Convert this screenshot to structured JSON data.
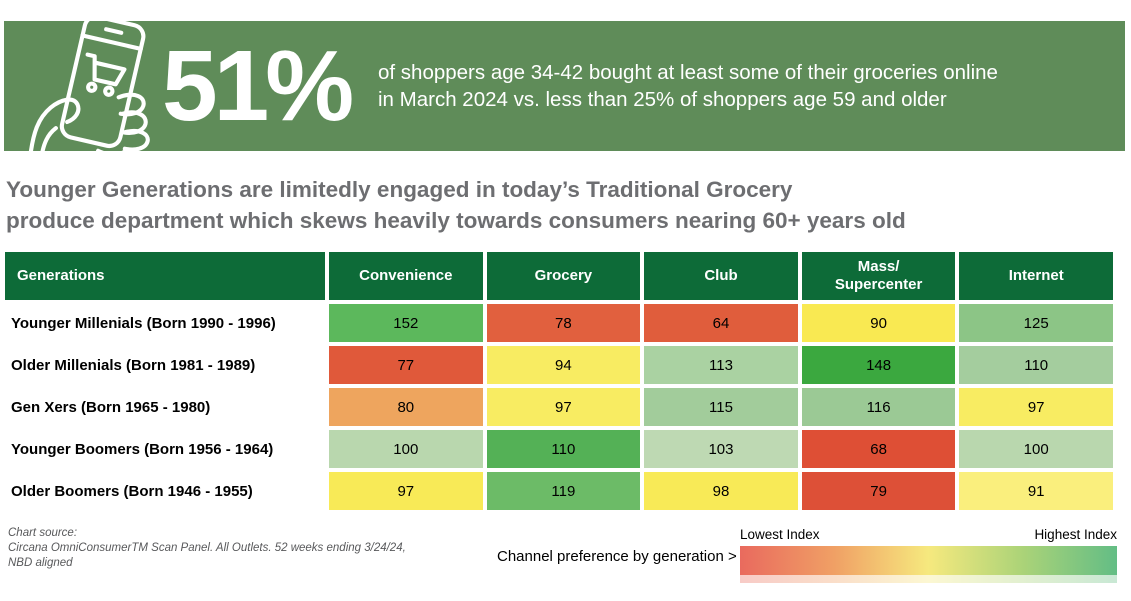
{
  "banner": {
    "stat": "51%",
    "description_line1": "of shoppers age 34-42 bought at least some of their groceries online",
    "description_line2": "in March 2024 vs. less than 25% of shoppers age 59 and older",
    "bg_color": "#5f8c59",
    "icon": "hand-holding-phone-shopping-cart-icon"
  },
  "headline": {
    "line1": "Younger Generations are limitedly engaged in today’s Traditional Grocery",
    "line2": "produce department which skews heavily towards consumers nearing 60+ years old"
  },
  "chart_data": {
    "type": "heatmap",
    "title": "Channel preference by generation",
    "categories": [
      "Convenience",
      "Grocery",
      "Club",
      "Mass/Supercenter",
      "Internet"
    ],
    "series": [
      {
        "name": "Younger Millenials (Born 1990 - 1996)",
        "values": [
          152,
          78,
          64,
          90,
          125
        ]
      },
      {
        "name": "Older Millenials (Born 1981 - 1989)",
        "values": [
          77,
          94,
          113,
          148,
          110
        ]
      },
      {
        "name": "Gen Xers (Born 1965 - 1980)",
        "values": [
          80,
          97,
          115,
          116,
          97
        ]
      },
      {
        "name": "Younger Boomers (Born 1956 - 1964)",
        "values": [
          100,
          110,
          103,
          68,
          100
        ]
      },
      {
        "name": "Older Boomers (Born 1946 - 1955)",
        "values": [
          97,
          119,
          98,
          79,
          91
        ]
      }
    ],
    "legend_position": "bottom-right",
    "color_scale": "red = lowest index, yellow = mid, green = highest index"
  },
  "table": {
    "header_bg": "#0d6b38",
    "columns": [
      "Generations",
      "Convenience",
      "Grocery",
      "Club",
      "Mass/\nSupercenter",
      "Internet"
    ],
    "rows": [
      {
        "label": "Younger Millenials (Born 1990 - 1996)",
        "cells": [
          {
            "value": "152",
            "color": "#5cb85c"
          },
          {
            "value": "78",
            "color": "#e1603e"
          },
          {
            "value": "64",
            "color": "#e05d3c"
          },
          {
            "value": "90",
            "color": "#f9e952"
          },
          {
            "value": "125",
            "color": "#8cc586"
          }
        ]
      },
      {
        "label": "Older Millenials (Born 1981 - 1989)",
        "cells": [
          {
            "value": "77",
            "color": "#e0593a"
          },
          {
            "value": "94",
            "color": "#f8ec62"
          },
          {
            "value": "113",
            "color": "#aad2a2"
          },
          {
            "value": "148",
            "color": "#3ba83f"
          },
          {
            "value": "110",
            "color": "#a4cd9e"
          }
        ]
      },
      {
        "label": "Gen Xers (Born 1965 - 1980)",
        "cells": [
          {
            "value": "80",
            "color": "#eea55e"
          },
          {
            "value": "97",
            "color": "#f8ec62"
          },
          {
            "value": "115",
            "color": "#a2cc9b"
          },
          {
            "value": "116",
            "color": "#9bc995"
          },
          {
            "value": "97",
            "color": "#f8ec62"
          }
        ]
      },
      {
        "label": "Younger Boomers (Born 1956 - 1964)",
        "cells": [
          {
            "value": "100",
            "color": "#b9d7ae"
          },
          {
            "value": "110",
            "color": "#54b156"
          },
          {
            "value": "103",
            "color": "#bed9b3"
          },
          {
            "value": "68",
            "color": "#de4f35"
          },
          {
            "value": "100",
            "color": "#b9d7ae"
          }
        ]
      },
      {
        "label": "Older Boomers (Born 1946 - 1955)",
        "cells": [
          {
            "value": "97",
            "color": "#f8ea57"
          },
          {
            "value": "119",
            "color": "#6cbb67"
          },
          {
            "value": "98",
            "color": "#f8ea57"
          },
          {
            "value": "79",
            "color": "#dd5037"
          },
          {
            "value": "91",
            "color": "#faef7d"
          }
        ]
      }
    ]
  },
  "footer": {
    "source_label": "Chart source:",
    "source_line1": "Circana OmniConsumerTM Scan Panel. All Outlets. 52 weeks ending 3/24/24,",
    "source_line2": "NBD aligned",
    "channel_note": "Channel preference by generation >"
  },
  "legend": {
    "lowest": "Lowest Index",
    "highest": "Highest Index",
    "gradient": [
      "#e96a5e",
      "#f0a065",
      "#f6e97e",
      "#abd378",
      "#63bd85"
    ]
  }
}
